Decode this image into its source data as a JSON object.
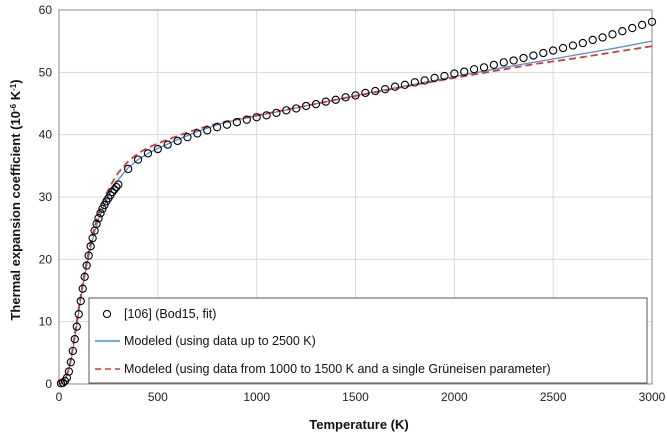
{
  "chart_data": {
    "type": "line",
    "xlabel": "Temperature (K)",
    "ylabel_main": "Thermal expansion coefficient (10",
    "ylabel_exp1": "-6",
    "ylabel_mid": " K",
    "ylabel_exp2": "-1",
    "ylabel_end": ")",
    "xlim": [
      0,
      3000
    ],
    "ylim": [
      0,
      60
    ],
    "x_ticks": [
      0,
      500,
      1000,
      1500,
      2000,
      2500,
      3000
    ],
    "x_tick_labels": [
      "0",
      "500",
      "1000",
      "1500",
      "2000",
      "2500",
      "3000"
    ],
    "y_ticks": [
      0,
      10,
      20,
      30,
      40,
      50,
      60
    ],
    "y_tick_labels": [
      "0",
      "10",
      "20",
      "30",
      "40",
      "50",
      "60"
    ],
    "grid": true,
    "legend_position": "bottom-right",
    "series": [
      {
        "name": "[106] (Bod15, fit)",
        "style": "markers",
        "marker": "open-circle",
        "color": "#000000",
        "x": [
          10,
          20,
          30,
          40,
          50,
          60,
          70,
          80,
          90,
          100,
          110,
          120,
          130,
          140,
          150,
          160,
          170,
          180,
          190,
          200,
          210,
          220,
          230,
          240,
          250,
          260,
          270,
          280,
          290,
          300,
          350,
          400,
          450,
          500,
          550,
          600,
          650,
          700,
          750,
          800,
          850,
          900,
          950,
          1000,
          1050,
          1100,
          1150,
          1200,
          1250,
          1300,
          1350,
          1400,
          1450,
          1500,
          1550,
          1600,
          1650,
          1700,
          1750,
          1800,
          1850,
          1900,
          1950,
          2000,
          2050,
          2100,
          2150,
          2200,
          2250,
          2300,
          2350,
          2400,
          2450,
          2500,
          2550,
          2600,
          2650,
          2700,
          2750,
          2800,
          2850,
          2900,
          2950,
          3000
        ],
        "y": [
          0.1,
          0.2,
          0.5,
          1.0,
          2.0,
          3.5,
          5.3,
          7.2,
          9.2,
          11.2,
          13.3,
          15.3,
          17.2,
          19.0,
          20.6,
          22.1,
          23.4,
          24.6,
          25.7,
          26.6,
          27.4,
          28.1,
          28.7,
          29.3,
          29.8,
          30.3,
          30.8,
          31.2,
          31.6,
          32.0,
          34.5,
          36.0,
          37.0,
          37.7,
          38.4,
          39.0,
          39.6,
          40.2,
          40.7,
          41.2,
          41.6,
          42.0,
          42.4,
          42.8,
          43.1,
          43.5,
          43.9,
          44.2,
          44.6,
          44.9,
          45.3,
          45.6,
          46.0,
          46.3,
          46.7,
          47.0,
          47.3,
          47.7,
          48.0,
          48.4,
          48.7,
          49.1,
          49.4,
          49.8,
          50.1,
          50.5,
          50.8,
          51.2,
          51.6,
          51.9,
          52.3,
          52.7,
          53.1,
          53.5,
          53.9,
          54.3,
          54.7,
          55.2,
          55.6,
          56.1,
          56.6,
          57.1,
          57.6,
          58.1
        ]
      },
      {
        "name": "Modeled (using data up to 2500 K)",
        "style": "solid",
        "color": "#4f8fd6",
        "x": [
          0,
          20,
          40,
          60,
          80,
          100,
          120,
          140,
          160,
          180,
          200,
          220,
          240,
          260,
          280,
          300,
          350,
          400,
          450,
          500,
          600,
          700,
          800,
          900,
          1000,
          1200,
          1400,
          1600,
          1800,
          2000,
          2200,
          2400,
          2600,
          2800,
          3000
        ],
        "y": [
          0,
          0.3,
          1.3,
          3.6,
          7.4,
          11.6,
          15.5,
          19.0,
          21.9,
          24.4,
          26.4,
          28.0,
          29.5,
          30.7,
          31.8,
          32.8,
          34.7,
          36.0,
          37.0,
          37.8,
          39.2,
          40.5,
          41.6,
          42.4,
          43.0,
          44.3,
          45.6,
          46.9,
          48.1,
          49.3,
          50.5,
          51.6,
          52.7,
          53.8,
          55.0
        ]
      },
      {
        "name": "Modeled (using data from 1000 to 1500 K and a single Grüneisen parameter)",
        "style": "dashed",
        "color": "#e0302a",
        "x": [
          0,
          20,
          40,
          60,
          80,
          100,
          120,
          140,
          160,
          180,
          200,
          220,
          240,
          260,
          280,
          300,
          350,
          400,
          450,
          500,
          600,
          700,
          800,
          900,
          1000,
          1200,
          1400,
          1600,
          1800,
          2000,
          2200,
          2400,
          2600,
          2800,
          3000
        ],
        "y": [
          0,
          0.3,
          1.4,
          3.9,
          7.9,
          12.2,
          16.2,
          19.7,
          22.7,
          25.2,
          27.3,
          29.0,
          30.5,
          31.8,
          32.9,
          33.9,
          35.7,
          37.0,
          37.9,
          38.6,
          39.8,
          40.9,
          41.8,
          42.5,
          43.1,
          44.3,
          45.6,
          46.8,
          48.0,
          49.1,
          50.2,
          51.3,
          52.2,
          53.2,
          54.2
        ]
      }
    ]
  }
}
